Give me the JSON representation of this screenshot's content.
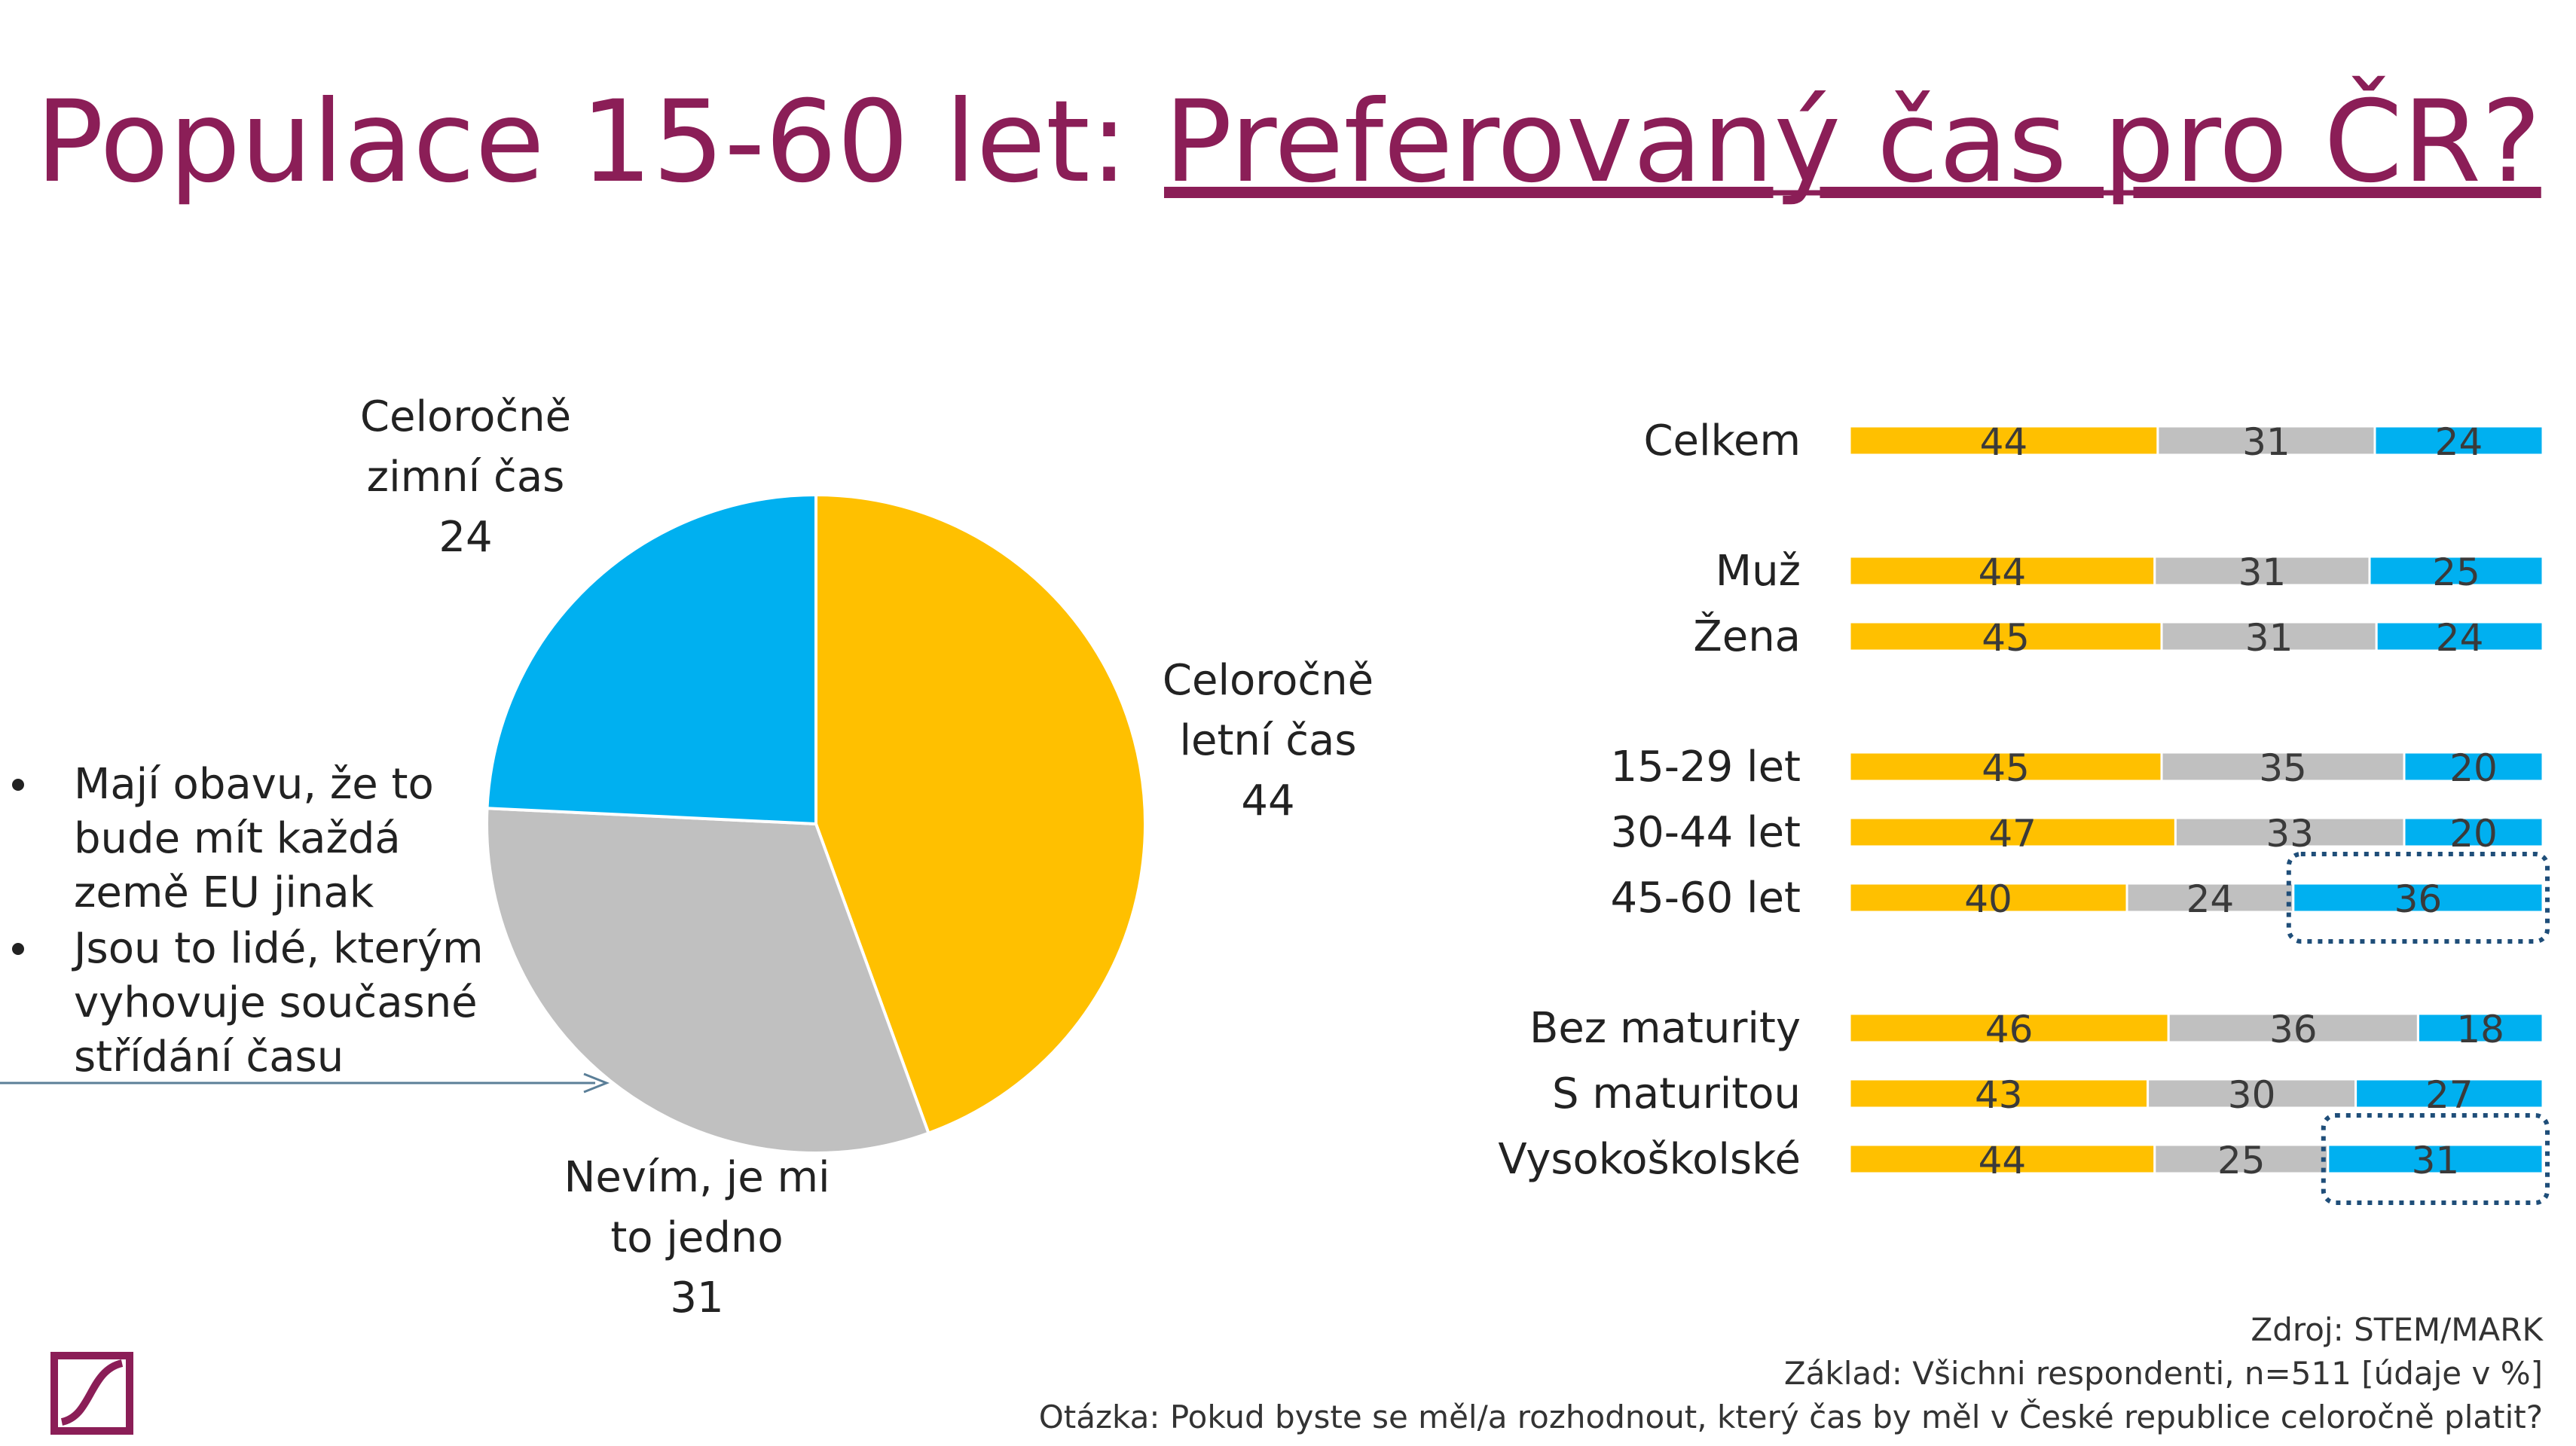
{
  "title": {
    "prefix": "Populace 15-60 let: ",
    "underlined": "Preferovaný čas pro ČR?",
    "color": "#8b1e57"
  },
  "colors": {
    "letni": "#ffc000",
    "nevim": "#c0c0c0",
    "zimni": "#00b0f0",
    "highlight_border": "#1f4e79"
  },
  "chart_data": [
    {
      "type": "pie",
      "slices": [
        {
          "label_lines": [
            "Celoročně",
            "letní čas"
          ],
          "value": 44,
          "color": "#ffc000"
        },
        {
          "label_lines": [
            "Nevím, je mi",
            "to jedno"
          ],
          "value": 31,
          "color": "#c0c0c0"
        },
        {
          "label_lines": [
            "Celoročně",
            "zimní čas"
          ],
          "value": 24,
          "color": "#00b0f0"
        }
      ]
    },
    {
      "type": "bar",
      "orientation": "horizontal",
      "stacked": true,
      "categories": [
        "Celkem",
        "Muž",
        "Žena",
        "15-29 let",
        "30-44 let",
        "45-60 let",
        "Bez maturity",
        "S maturitou",
        "Vysokoškolské"
      ],
      "groups": [
        [
          0
        ],
        [
          1,
          2
        ],
        [
          3,
          4,
          5
        ],
        [
          6,
          7,
          8
        ]
      ],
      "series": [
        {
          "values": [
            44,
            44,
            45,
            45,
            47,
            40,
            46,
            43,
            44
          ],
          "color": "#ffc000"
        },
        {
          "values": [
            31,
            31,
            31,
            35,
            33,
            24,
            36,
            30,
            25
          ],
          "color": "#c0c0c0"
        },
        {
          "values": [
            24,
            25,
            24,
            20,
            20,
            36,
            18,
            27,
            31
          ],
          "color": "#00b0f0"
        }
      ],
      "highlighted": [
        {
          "category": "45-60 let",
          "series": 2
        },
        {
          "category": "Vysokoškolské",
          "series": 2
        }
      ]
    }
  ],
  "bullets": [
    [
      "Mají obavu, že to",
      "bude mít každá",
      "země EU jinak"
    ],
    [
      "Jsou to lidé, kterým",
      "vyhovuje současné",
      "střídání času"
    ]
  ],
  "footer": {
    "source": "Zdroj: STEM/MARK",
    "base": "Základ: Všichni respondenti, n=511 [údaje v %]",
    "question": "Otázka: Pokud byste se měl/a rozhodnout, který čas by měl v České republice celoročně platit?"
  },
  "logo_icon": "stem-mark-logo-icon"
}
